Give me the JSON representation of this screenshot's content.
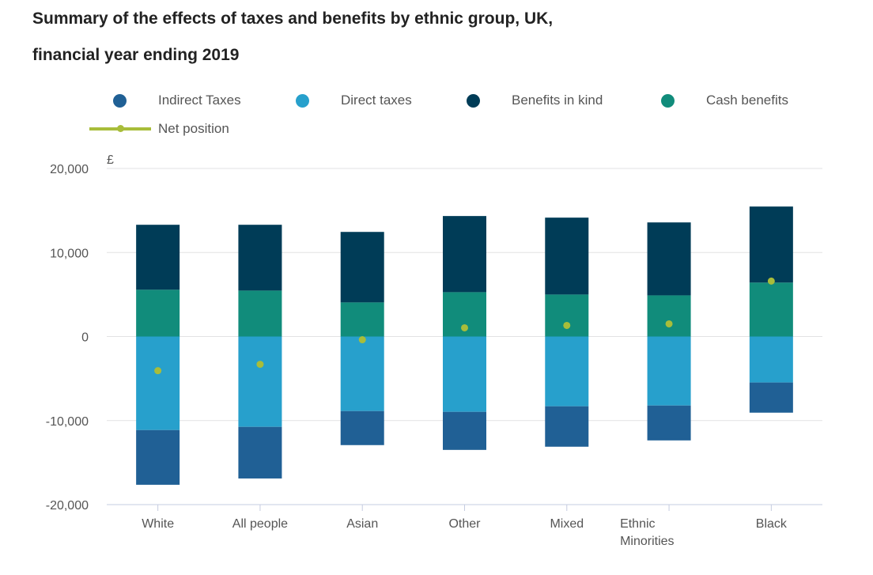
{
  "chart_data": {
    "type": "bar",
    "stacked": true,
    "title_line1": "Summary of the effects of taxes and benefits by ethnic group, UK,",
    "title_line2": "financial year ending 2019",
    "ylabel": "£",
    "ylim": [
      -20000,
      20000
    ],
    "yticks": [
      20000,
      10000,
      0,
      -10000,
      -20000
    ],
    "ytick_labels": [
      "20,000",
      "10,000",
      "0",
      "-10,000",
      "-20,000"
    ],
    "categories": [
      "White",
      "All people",
      "Asian",
      "Other",
      "Mixed",
      "Ethnic Minorities",
      "Black"
    ],
    "series": [
      {
        "name": "Indirect Taxes",
        "color": "#206095",
        "values": [
          -6510,
          -6140,
          -4050,
          -4530,
          -4810,
          -4150,
          -3590
        ]
      },
      {
        "name": "Direct taxes",
        "color": "#27a0cc",
        "values": [
          -11130,
          -10750,
          -8870,
          -8960,
          -8300,
          -8210,
          -5470
        ]
      },
      {
        "name": "Benefits in kind",
        "color": "#003c57",
        "values": [
          7730,
          7830,
          8390,
          9060,
          9150,
          8680,
          9050
        ]
      },
      {
        "name": "Cash benefits",
        "color": "#118c7b",
        "values": [
          5570,
          5470,
          4060,
          5280,
          5000,
          4900,
          6420
        ]
      }
    ],
    "net_position": {
      "name": "Net position",
      "color": "#a8bd3a",
      "values": [
        -4060,
        -3300,
        -380,
        1040,
        1320,
        1510,
        6600
      ]
    },
    "grid": true,
    "legend_position": "top"
  }
}
